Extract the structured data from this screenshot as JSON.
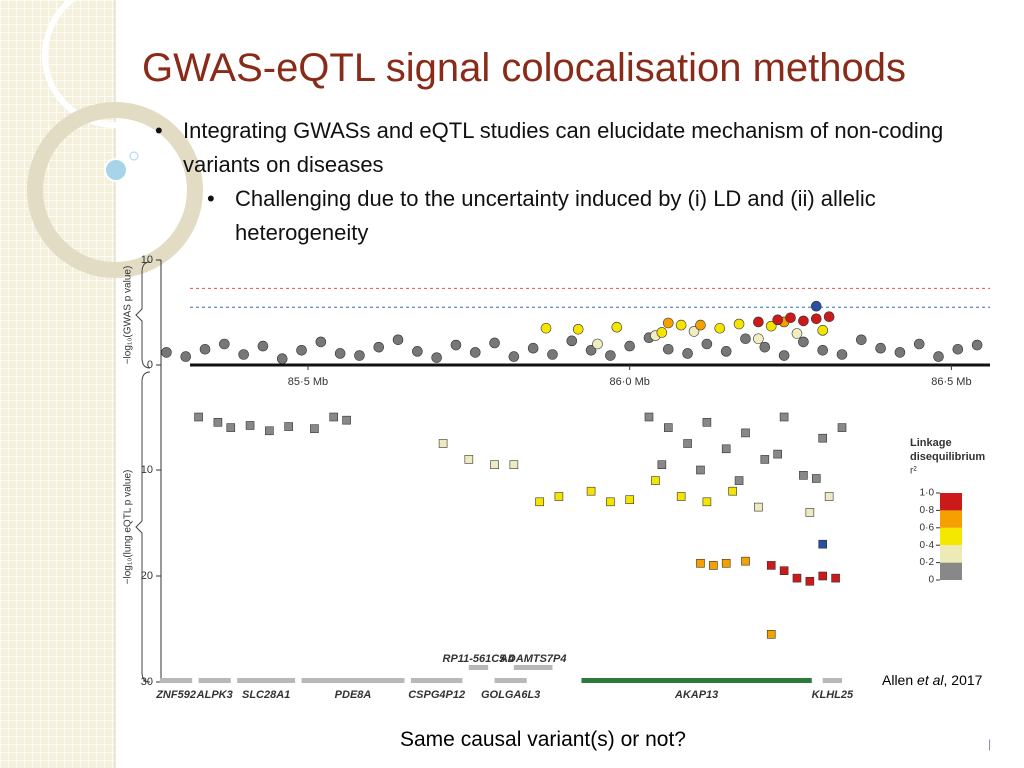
{
  "slide": {
    "title": "GWAS-eQTL signal colocalisation methods",
    "bullets": [
      "Integrating GWASs and eQTL studies can elucidate mechanism of non-coding variants on diseases"
    ],
    "sub_bullets": [
      "Challenging due to the uncertainty induced by (i) LD and (ii) allelic heterogeneity"
    ],
    "question": "Same causal variant(s) or not?",
    "citation": [
      "Allen ",
      "et al",
      ", 2017"
    ]
  },
  "chart_data": [
    {
      "type": "scatter",
      "marker": "circle",
      "ylabel": "−log₁₀(GWAS p value)",
      "ylim": [
        0,
        10
      ],
      "yticks": [
        0,
        10
      ],
      "xlim": [
        85.27,
        86.56
      ],
      "xticks": [
        {
          "value": 85.5,
          "label": "85·5 Mb"
        },
        {
          "value": 86.0,
          "label": "86·0 Mb"
        },
        {
          "value": 86.5,
          "label": "86·5 Mb"
        }
      ],
      "threshold_lines": [
        {
          "value": 7.3,
          "color": "#e05050"
        },
        {
          "value": 5.5,
          "color": "#3070c0"
        }
      ],
      "series": [
        {
          "color": "#777777",
          "x": [
            85.28,
            85.31,
            85.34,
            85.37,
            85.4,
            85.43,
            85.46,
            85.49,
            85.52,
            85.55,
            85.58,
            85.61,
            85.64,
            85.67,
            85.7,
            85.73,
            85.76,
            85.79,
            85.82,
            85.85,
            85.88,
            85.91,
            85.94,
            85.97,
            86.0,
            86.03,
            86.06,
            86.09,
            86.12,
            86.15,
            86.18,
            86.21,
            86.24,
            86.27,
            86.3,
            86.33,
            86.36,
            86.39,
            86.42,
            86.45,
            86.48,
            86.51,
            86.54
          ],
          "values": [
            1.2,
            0.8,
            1.5,
            2.0,
            1.0,
            1.8,
            0.6,
            1.4,
            2.2,
            1.1,
            0.9,
            1.7,
            2.4,
            1.3,
            0.7,
            1.9,
            1.2,
            2.1,
            0.8,
            1.6,
            1.0,
            2.3,
            1.4,
            0.9,
            1.8,
            2.6,
            1.5,
            1.1,
            2.0,
            1.3,
            2.5,
            1.7,
            0.9,
            2.2,
            1.4,
            1.0,
            2.4,
            1.6,
            1.2,
            2.0,
            0.8,
            1.5,
            1.9
          ]
        },
        {
          "color": "#f0edc0",
          "x": [
            85.95,
            86.04,
            86.1,
            86.2,
            86.26
          ],
          "values": [
            2.0,
            2.8,
            3.2,
            2.5,
            3.0
          ]
        },
        {
          "color": "#f5e400",
          "x": [
            85.87,
            85.92,
            85.98,
            86.05,
            86.08,
            86.14,
            86.17,
            86.22,
            86.3
          ],
          "values": [
            3.5,
            3.4,
            3.6,
            3.1,
            3.8,
            3.5,
            3.9,
            3.7,
            3.3
          ]
        },
        {
          "color": "#f5a000",
          "x": [
            86.06,
            86.11,
            86.24
          ],
          "values": [
            4.0,
            3.8,
            4.1
          ]
        },
        {
          "color": "#cc1a1a",
          "x": [
            86.2,
            86.23,
            86.25,
            86.27,
            86.29,
            86.31
          ],
          "values": [
            4.1,
            4.3,
            4.5,
            4.2,
            4.4,
            4.6
          ]
        },
        {
          "color": "#2a4fa0",
          "x": [
            86.29
          ],
          "values": [
            5.6
          ]
        }
      ]
    },
    {
      "type": "scatter",
      "marker": "square",
      "ylabel": "−log₁₀(lung eQTL p value)",
      "ylim": [
        0,
        30
      ],
      "y_inverted": true,
      "yticks": [
        10,
        20,
        30
      ],
      "xlim": [
        85.27,
        86.56
      ],
      "series": [
        {
          "color": "#888888",
          "x": [
            85.33,
            85.36,
            85.38,
            85.41,
            85.44,
            85.47,
            85.51,
            85.54,
            85.56,
            86.03,
            86.06,
            86.09,
            86.12,
            86.15,
            86.18,
            86.21,
            86.24,
            86.27,
            86.3,
            86.33,
            86.05,
            86.11,
            86.17,
            86.23,
            86.29
          ],
          "values": [
            5.0,
            5.5,
            6.0,
            5.8,
            6.3,
            5.9,
            6.1,
            5.0,
            5.3,
            5.0,
            6.0,
            7.5,
            5.5,
            8.0,
            6.5,
            9.0,
            5.0,
            10.5,
            7.0,
            6.0,
            9.5,
            10.0,
            11.0,
            8.5,
            10.8
          ]
        },
        {
          "color": "#eeeac0",
          "x": [
            85.71,
            85.75,
            85.79,
            85.82,
            86.28,
            86.31,
            86.2
          ],
          "values": [
            7.5,
            9.0,
            9.5,
            9.5,
            14.0,
            12.5,
            13.5
          ]
        },
        {
          "color": "#f5e400",
          "x": [
            85.86,
            85.89,
            85.94,
            85.97,
            86.0,
            86.04,
            86.08,
            86.12,
            86.16
          ],
          "values": [
            13.0,
            12.5,
            12.0,
            13.0,
            12.8,
            11.0,
            12.5,
            13.0,
            12.0
          ]
        },
        {
          "color": "#f5a000",
          "x": [
            86.11,
            86.13,
            86.15,
            86.18,
            86.22
          ],
          "values": [
            18.8,
            19.0,
            18.8,
            18.6,
            25.5
          ]
        },
        {
          "color": "#cc1a1a",
          "x": [
            86.22,
            86.24,
            86.26,
            86.28,
            86.3,
            86.32
          ],
          "values": [
            19.0,
            19.5,
            20.2,
            20.5,
            20.0,
            20.2
          ]
        },
        {
          "color": "#2a4fa0",
          "x": [
            86.3
          ],
          "values": [
            17.0
          ]
        }
      ],
      "genes": [
        {
          "label": "ZNF592",
          "start": 85.27,
          "end": 85.32,
          "color": "#b8b8b8"
        },
        {
          "label": "ALPK3",
          "start": 85.33,
          "end": 85.38,
          "color": "#b8b8b8"
        },
        {
          "label": "SLC28A1",
          "start": 85.39,
          "end": 85.48,
          "color": "#b8b8b8"
        },
        {
          "label": "PDE8A",
          "start": 85.49,
          "end": 85.65,
          "color": "#b8b8b8"
        },
        {
          "label": "CSPG4P12",
          "start": 85.66,
          "end": 85.74,
          "color": "#b8b8b8"
        },
        {
          "label": "RP11-561C5.4",
          "start": 85.75,
          "end": 85.78,
          "color": "#b8b8b8",
          "upper": true
        },
        {
          "label": "GOLGA6L3",
          "start": 85.79,
          "end": 85.84,
          "color": "#b8b8b8"
        },
        {
          "label": "ADAMTS7P4",
          "start": 85.82,
          "end": 85.88,
          "color": "#b8b8b8",
          "upper": true
        },
        {
          "label": "AKAP13",
          "start": 85.925,
          "end": 86.283,
          "color": "#2e7a3a"
        },
        {
          "label": "KLHL25",
          "start": 86.3,
          "end": 86.33,
          "color": "#b8b8b8"
        }
      ],
      "legend": {
        "title": [
          "Linkage",
          "disequilibrium"
        ],
        "subtitle": "r²",
        "ticks": [
          {
            "value": 1,
            "label": "1·0"
          },
          {
            "value": 0.8,
            "label": "0·8"
          },
          {
            "value": 0.6,
            "label": "0·6"
          },
          {
            "value": 0.4,
            "label": "0·4"
          },
          {
            "value": 0.2,
            "label": "0·2"
          },
          0
        ],
        "colors": [
          "#888888",
          "#eeeab8",
          "#f5e800",
          "#f5a000",
          "#cc1a1a"
        ]
      }
    }
  ]
}
